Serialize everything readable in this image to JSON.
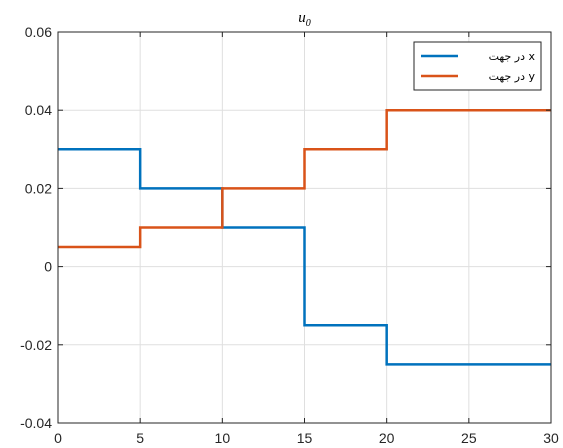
{
  "chart_data": {
    "type": "line",
    "title": "u",
    "title_subscript": "0",
    "xlabel": "",
    "ylabel": "",
    "xlim": [
      0,
      30
    ],
    "ylim": [
      -0.04,
      0.06
    ],
    "xticks": [
      0,
      5,
      10,
      15,
      20,
      25,
      30
    ],
    "yticks": [
      -0.04,
      -0.02,
      0,
      0.02,
      0.04,
      0.06
    ],
    "ytick_labels": [
      "-0.04",
      "-0.02",
      "0",
      "0.02",
      "0.04",
      "0.06"
    ],
    "grid": true,
    "legend_position": "top-right",
    "step": true,
    "series": [
      {
        "name": "در جهت x",
        "color": "#0072BD",
        "x": [
          0,
          5,
          5,
          10,
          10,
          15,
          15,
          20,
          20,
          30
        ],
        "y": [
          0.03,
          0.03,
          0.02,
          0.02,
          0.01,
          0.01,
          -0.015,
          -0.015,
          -0.025,
          -0.025
        ]
      },
      {
        "name": "در جهت y",
        "color": "#D95319",
        "x": [
          0,
          5,
          5,
          10,
          10,
          15,
          15,
          20,
          20,
          30
        ],
        "y": [
          0.005,
          0.005,
          0.01,
          0.01,
          0.02,
          0.02,
          0.03,
          0.03,
          0.04,
          0.04
        ]
      }
    ]
  }
}
